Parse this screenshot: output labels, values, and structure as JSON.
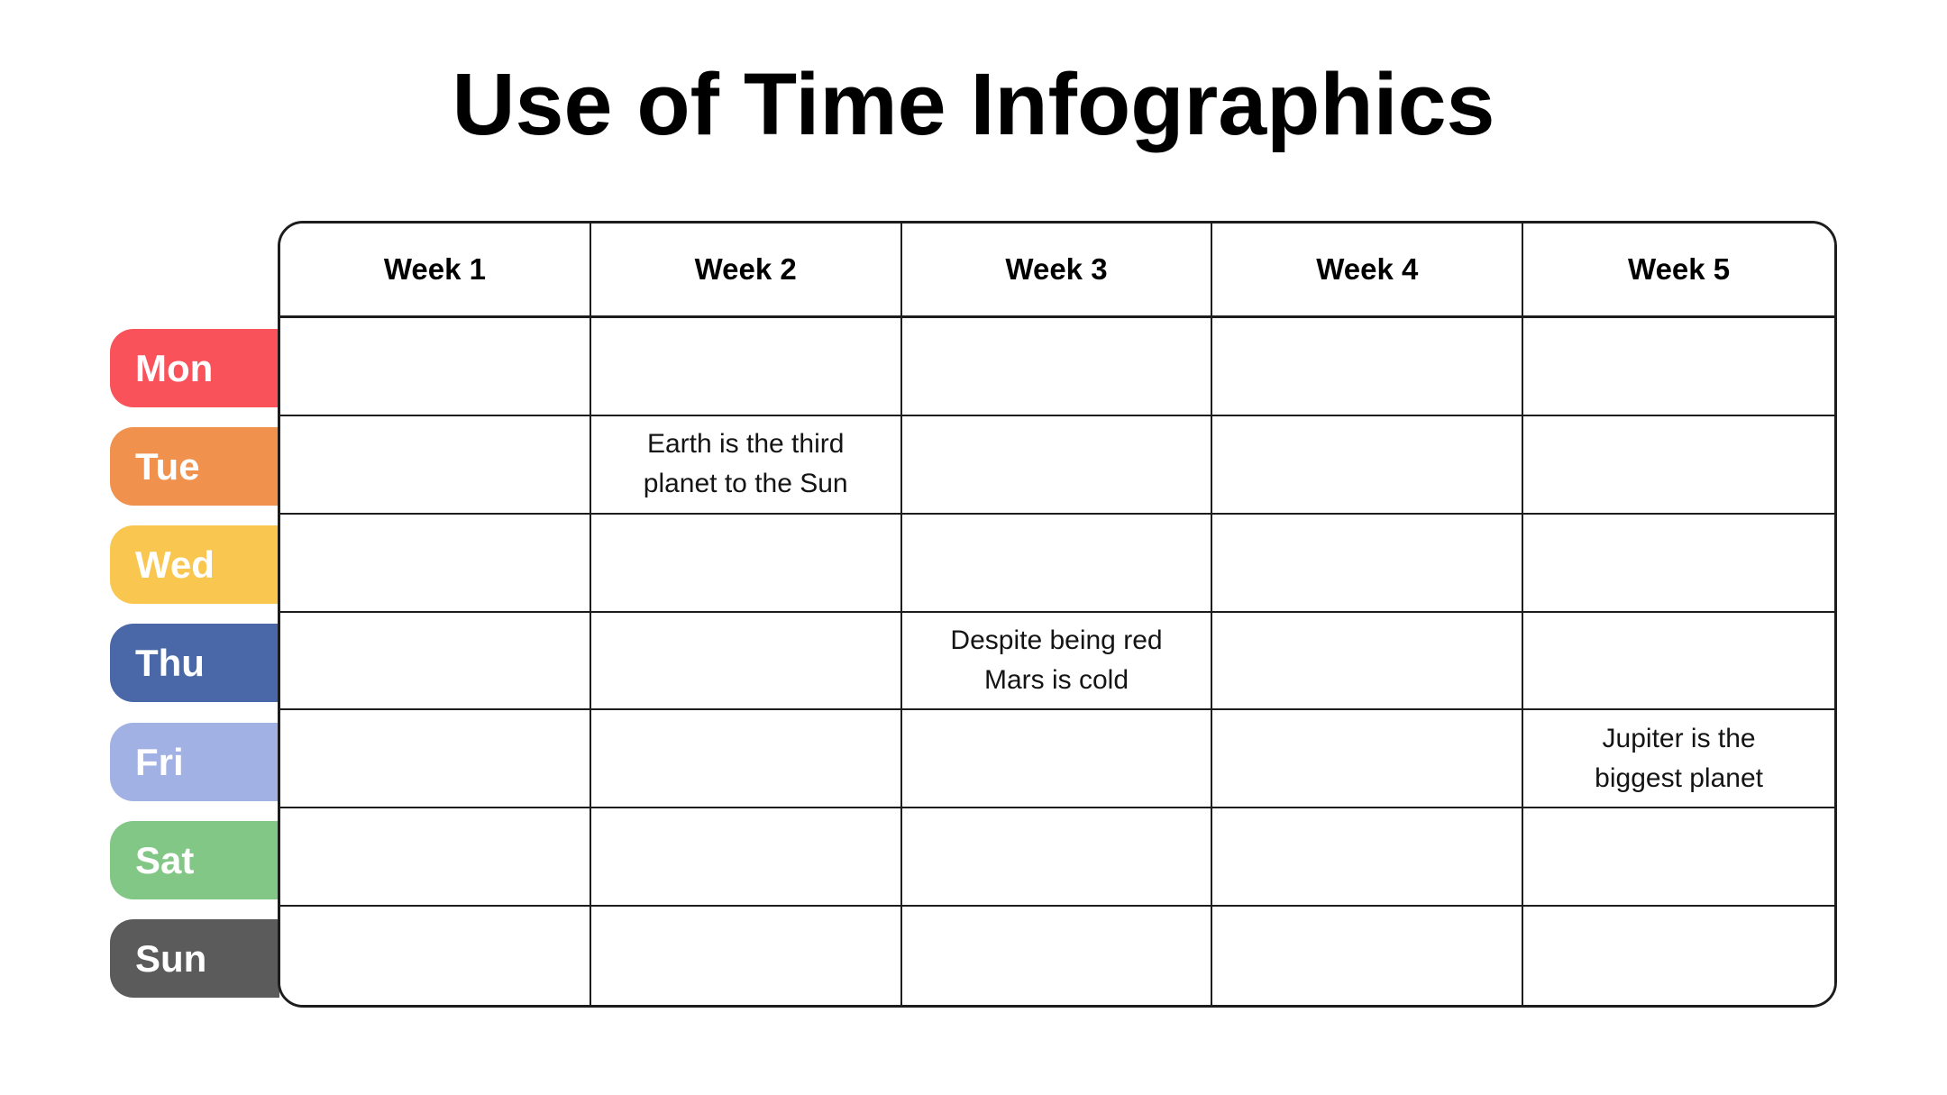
{
  "title": "Use of Time Infographics",
  "colors": {
    "border": "#1d1d1d",
    "background": "#ffffff",
    "label_text": "#ffffff"
  },
  "table": {
    "week_headers": [
      "Week 1",
      "Week 2",
      "Week 3",
      "Week 4",
      "Week 5"
    ],
    "days": [
      {
        "label": "Mon",
        "color": "#fa525b"
      },
      {
        "label": "Tue",
        "color": "#f0914e"
      },
      {
        "label": "Wed",
        "color": "#f9c74f"
      },
      {
        "label": "Thu",
        "color": "#4a68a7"
      },
      {
        "label": "Fri",
        "color": "#a2b1e3"
      },
      {
        "label": "Sat",
        "color": "#82c785"
      },
      {
        "label": "Sun",
        "color": "#5b5b5b"
      }
    ],
    "notes": [
      {
        "day": "Tue",
        "week": "Week 2",
        "line1": "Earth is the third",
        "line2": "planet to the Sun"
      },
      {
        "day": "Thu",
        "week": "Week 3",
        "line1": "Despite being red",
        "line2": "Mars is cold"
      },
      {
        "day": "Fri",
        "week": "Week 5",
        "line1": "Jupiter is the",
        "line2": "biggest planet"
      }
    ]
  },
  "chart_data": {
    "type": "table",
    "title": "Use of Time Infographics",
    "columns": [
      "Week 1",
      "Week 2",
      "Week 3",
      "Week 4",
      "Week 5"
    ],
    "rows": [
      "Mon",
      "Tue",
      "Wed",
      "Thu",
      "Fri",
      "Sat",
      "Sun"
    ],
    "cells": [
      {
        "row": "Tue",
        "column": "Week 2",
        "text": "Earth is the third planet to the Sun"
      },
      {
        "row": "Thu",
        "column": "Week 3",
        "text": "Despite being red Mars is cold"
      },
      {
        "row": "Fri",
        "column": "Week 5",
        "text": "Jupiter is the biggest planet"
      }
    ]
  }
}
